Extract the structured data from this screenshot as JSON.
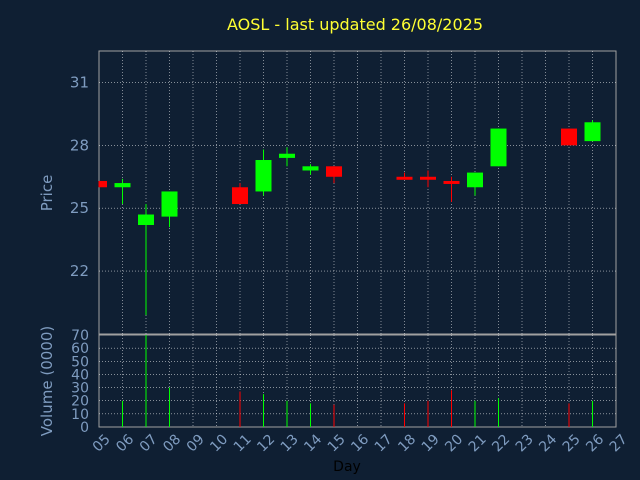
{
  "chart_data": {
    "type": "candlestick",
    "title": "AOSL - last updated 26/08/2025",
    "xlabel": "Day",
    "price_panel": {
      "ylabel": "Price",
      "yticks": [
        22,
        25,
        28,
        31
      ],
      "ylim": [
        19.0,
        32.5
      ]
    },
    "volume_panel": {
      "ylabel": "Volume (0000)",
      "yticks": [
        0,
        10,
        20,
        30,
        40,
        50,
        60,
        70
      ],
      "ylim": [
        0,
        70
      ]
    },
    "x_ticks": [
      "05",
      "06",
      "07",
      "08",
      "09",
      "10",
      "11",
      "12",
      "13",
      "14",
      "15",
      "16",
      "17",
      "18",
      "19",
      "20",
      "21",
      "22",
      "23",
      "24",
      "25",
      "26",
      "27"
    ],
    "x_range": [
      5,
      27
    ],
    "colors": {
      "up": "#00ff00",
      "down": "#ff0000",
      "background": "#0f1f33",
      "plot": "#0f1f33",
      "grid": "#ffffff",
      "title": "#ffff33",
      "axis_text": "#7f9cc0"
    },
    "candles": [
      {
        "day": 5,
        "open": 26.3,
        "high": 26.3,
        "low": 26.0,
        "close": 26.0,
        "volume": 0
      },
      {
        "day": 6,
        "open": 26.0,
        "high": 26.4,
        "low": 25.2,
        "close": 26.2,
        "volume": 20
      },
      {
        "day": 7,
        "open": 24.2,
        "high": 25.2,
        "low": 19.9,
        "close": 24.7,
        "volume": 70
      },
      {
        "day": 8,
        "open": 24.6,
        "high": 25.8,
        "low": 24.1,
        "close": 25.8,
        "volume": 30
      },
      {
        "day": 11,
        "open": 26.0,
        "high": 26.2,
        "low": 25.2,
        "close": 25.2,
        "volume": 27
      },
      {
        "day": 12,
        "open": 25.8,
        "high": 27.8,
        "low": 25.6,
        "close": 27.3,
        "volume": 25
      },
      {
        "day": 13,
        "open": 27.4,
        "high": 27.9,
        "low": 27.0,
        "close": 27.6,
        "volume": 20
      },
      {
        "day": 14,
        "open": 26.8,
        "high": 27.1,
        "low": 26.6,
        "close": 27.0,
        "volume": 18
      },
      {
        "day": 15,
        "open": 27.0,
        "high": 27.0,
        "low": 26.2,
        "close": 26.5,
        "volume": 17
      },
      {
        "day": 18,
        "open": 26.5,
        "high": 26.7,
        "low": 26.4,
        "close": 26.4,
        "volume": 18
      },
      {
        "day": 19,
        "open": 26.5,
        "high": 26.8,
        "low": 26.0,
        "close": 26.4,
        "volume": 20
      },
      {
        "day": 20,
        "open": 26.3,
        "high": 26.5,
        "low": 25.3,
        "close": 26.2,
        "volume": 28
      },
      {
        "day": 21,
        "open": 26.0,
        "high": 26.7,
        "low": 25.6,
        "close": 26.7,
        "volume": 20
      },
      {
        "day": 22,
        "open": 27.0,
        "high": 28.8,
        "low": 27.0,
        "close": 28.8,
        "volume": 22
      },
      {
        "day": 25,
        "open": 28.8,
        "high": 28.8,
        "low": 28.0,
        "close": 28.0,
        "volume": 18
      },
      {
        "day": 26,
        "open": 28.2,
        "high": 29.2,
        "low": 28.2,
        "close": 29.1,
        "volume": 20
      }
    ]
  }
}
